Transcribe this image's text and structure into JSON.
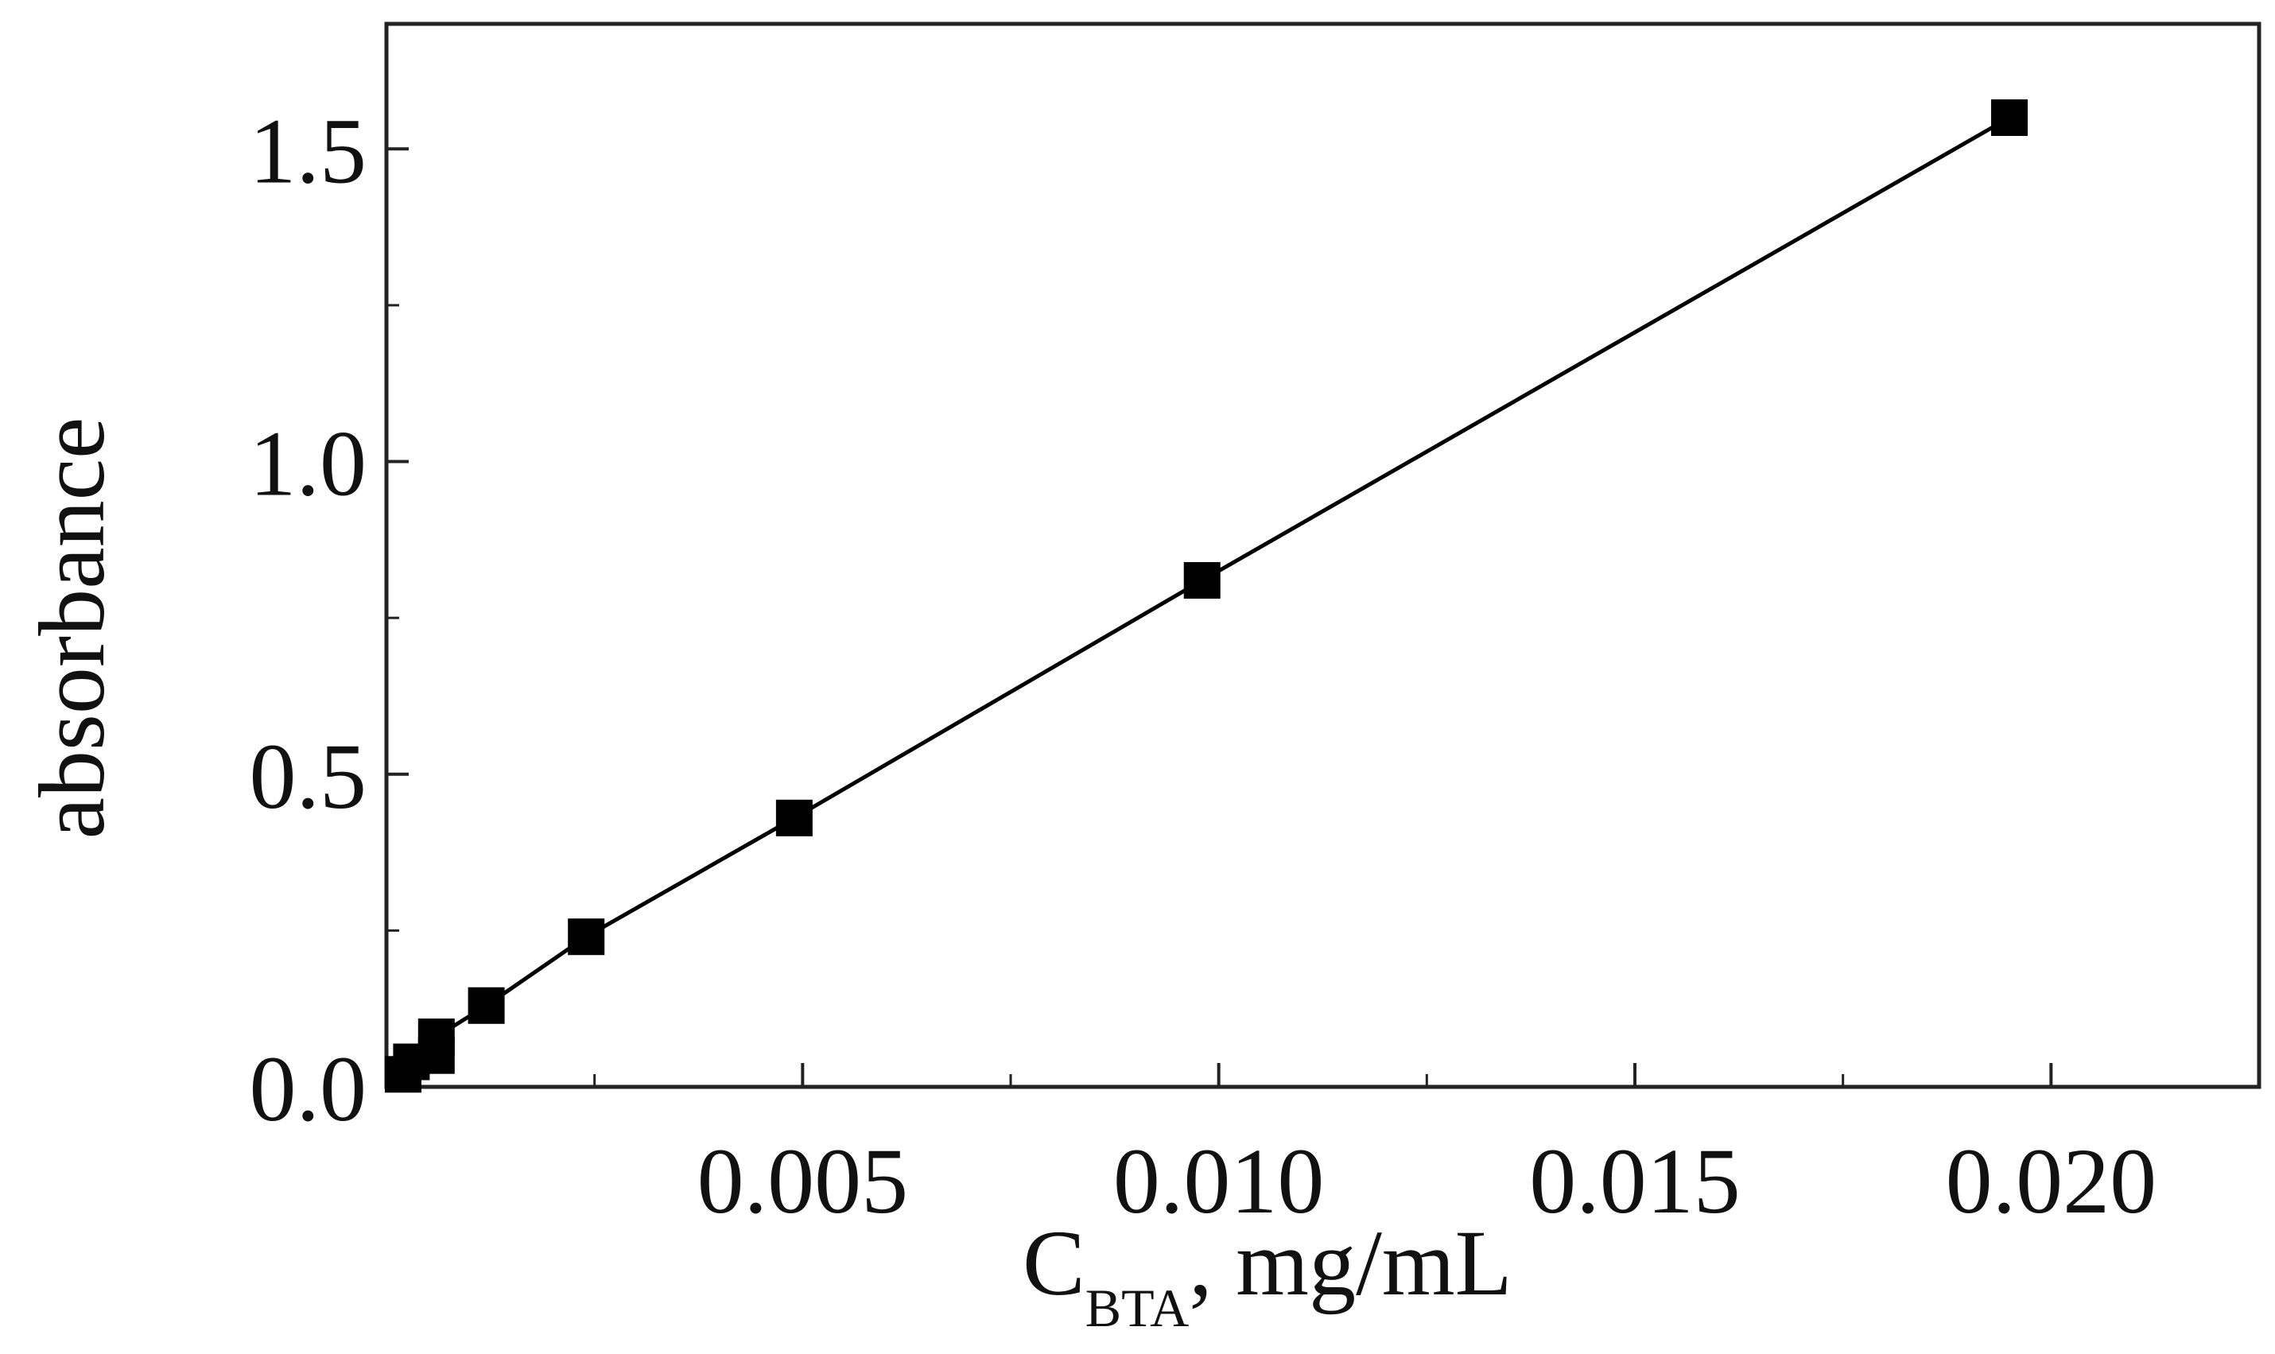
{
  "chart_data": {
    "type": "line",
    "title": "",
    "xlabel_main": "C",
    "xlabel_sub": "BTA",
    "xlabel_unit": ", mg/mL",
    "ylabel": "absorbance",
    "xlim": [
      0,
      0.0225
    ],
    "ylim": [
      0,
      1.7
    ],
    "x_ticks": [
      {
        "value": 0.005,
        "label": "0.005"
      },
      {
        "value": 0.01,
        "label": "0.010"
      },
      {
        "value": 0.015,
        "label": "0.015"
      },
      {
        "value": 0.02,
        "label": "0.020"
      }
    ],
    "x_minor_ticks": [
      0.0025,
      0.0075,
      0.0125,
      0.0175
    ],
    "y_ticks": [
      {
        "value": 0.0,
        "label": "0.0"
      },
      {
        "value": 0.5,
        "label": "0.5"
      },
      {
        "value": 1.0,
        "label": "1.0"
      },
      {
        "value": 1.5,
        "label": "1.5"
      }
    ],
    "y_minor_ticks": [
      0.25,
      0.75,
      1.25
    ],
    "grid": false,
    "legend": "none",
    "series": [
      {
        "marker": "square",
        "color": "#000000",
        "points": [
          {
            "x": 0.0002,
            "y": 0.02
          },
          {
            "x": 0.0003,
            "y": 0.04
          },
          {
            "x": 0.0006,
            "y": 0.05
          },
          {
            "x": 0.0006,
            "y": 0.08
          },
          {
            "x": 0.0012,
            "y": 0.13
          },
          {
            "x": 0.0024,
            "y": 0.24
          },
          {
            "x": 0.0049,
            "y": 0.43
          },
          {
            "x": 0.0098,
            "y": 0.81
          },
          {
            "x": 0.0195,
            "y": 1.55
          }
        ]
      }
    ]
  }
}
